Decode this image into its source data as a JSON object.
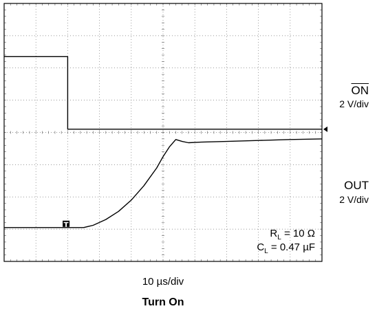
{
  "chart_data": {
    "type": "line",
    "title": "Turn On",
    "x_scale_label": "10 µs/div",
    "grid": true,
    "divisions": {
      "x": 10,
      "y": 8
    },
    "channels": [
      {
        "name_prefix": "",
        "name_overlined": "ON",
        "scale": "2 V/div",
        "marker": "arrow",
        "x_div": [
          0,
          2.0,
          2.0,
          10
        ],
        "y_div": [
          6.35,
          6.35,
          4.1,
          4.1
        ]
      },
      {
        "name_prefix": "OUT",
        "name_overlined": "",
        "scale": "2 V/div",
        "marker": "T",
        "x_div": [
          0,
          1.5,
          2.5,
          2.8,
          3.2,
          3.6,
          4.0,
          4.4,
          4.8,
          5.0,
          5.2,
          5.4,
          5.6,
          5.8,
          6.2,
          7.0,
          8.0,
          9.0,
          10
        ],
        "y_div": [
          1.05,
          1.05,
          1.05,
          1.12,
          1.3,
          1.55,
          1.9,
          2.35,
          2.9,
          3.25,
          3.55,
          3.78,
          3.72,
          3.68,
          3.7,
          3.72,
          3.75,
          3.78,
          3.8
        ]
      }
    ],
    "annotations": {
      "rl_sym": "R",
      "rl_sub": "L",
      "rl_val": " = 10 Ω",
      "cl_sym": "C",
      "cl_sub": "L",
      "cl_val": " = 0.47 µF"
    }
  }
}
